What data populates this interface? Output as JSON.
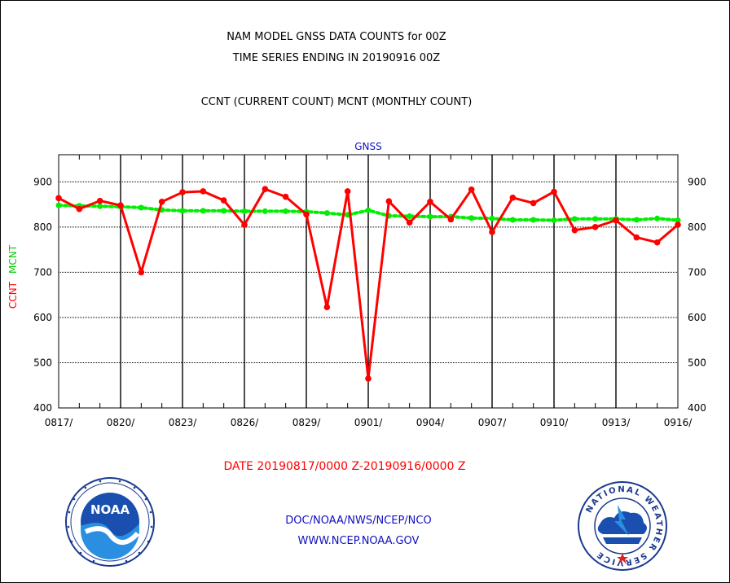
{
  "header": {
    "title_line1": "NAM MODEL GNSS DATA COUNTS for 00Z",
    "title_line2": "TIME SERIES ENDING IN 20190916 00Z",
    "subtitle": "CCNT (CURRENT COUNT) MCNT (MONTHLY COUNT)"
  },
  "footer": {
    "date_range": "DATE 20190817/0000 Z-20190916/0000 Z",
    "credit_line1": "DOC/NOAA/NWS/NCEP/NCO",
    "credit_line2": "WWW.NCEP.NOAA.GOV"
  },
  "logos": {
    "left": "NOAA",
    "right_ring_text": "NATIONAL WEATHER SERVICE"
  },
  "chart_data": {
    "type": "line",
    "title": "GNSS",
    "ylabel_left_parts": [
      "CCNT",
      "MCNT"
    ],
    "ylim": [
      400,
      960
    ],
    "yticks": [
      400,
      500,
      600,
      700,
      800,
      900
    ],
    "xtick_labels": [
      "0817/",
      "0820/",
      "0823/",
      "0826/",
      "0829/",
      "0901/",
      "0904/",
      "0907/",
      "0910/",
      "0913/",
      "0916/"
    ],
    "x": [
      "0817",
      "0818",
      "0819",
      "0820",
      "0821",
      "0822",
      "0823",
      "0824",
      "0825",
      "0826",
      "0827",
      "0828",
      "0829",
      "0830",
      "0831",
      "0901",
      "0902",
      "0903",
      "0904",
      "0905",
      "0906",
      "0907",
      "0908",
      "0909",
      "0910",
      "0911",
      "0912",
      "0913",
      "0914",
      "0915",
      "0916"
    ],
    "grid": true,
    "series": [
      {
        "name": "CCNT",
        "color": "#ff0000",
        "style": "solid",
        "values": [
          864,
          840,
          858,
          848,
          700,
          856,
          877,
          879,
          859,
          805,
          884,
          867,
          828,
          623,
          879,
          465,
          857,
          810,
          856,
          817,
          883,
          789,
          865,
          853,
          878,
          793,
          800,
          815,
          777,
          766,
          805
        ]
      },
      {
        "name": "MCNT",
        "color": "#00ee00",
        "style": "dotted",
        "values": [
          848,
          847,
          846,
          845,
          843,
          838,
          836,
          836,
          836,
          835,
          835,
          835,
          834,
          831,
          827,
          837,
          825,
          824,
          823,
          823,
          820,
          819,
          816,
          816,
          815,
          818,
          818,
          818,
          816,
          819,
          815
        ]
      }
    ]
  }
}
